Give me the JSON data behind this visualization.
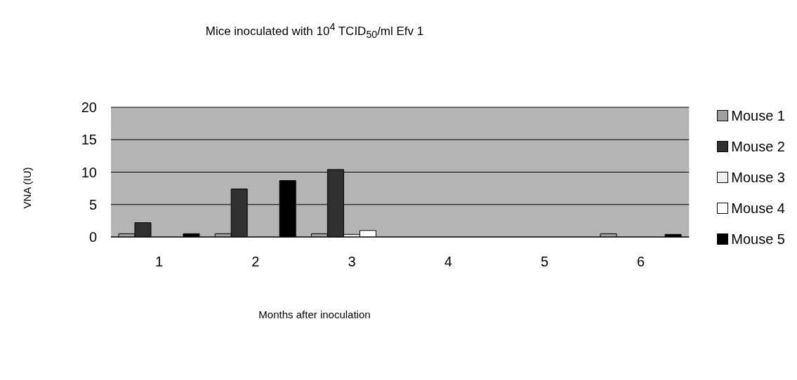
{
  "chart_data": {
    "type": "bar",
    "title": "Mice inoculated with 10$^{4}$ TCID$_{50}$/ml Efv 1",
    "xlabel": "Months after inoculation",
    "ylabel": "VNA (IU)",
    "categories": [
      "1",
      "2",
      "3",
      "4",
      "5",
      "6"
    ],
    "series": [
      {
        "name": "Mouse 1",
        "color": "#a0a0a0",
        "values": [
          0.5,
          0.5,
          0.5,
          0,
          0,
          0.5
        ]
      },
      {
        "name": "Mouse 2",
        "color": "#303030",
        "values": [
          2.2,
          7.4,
          10.4,
          0,
          0,
          0
        ]
      },
      {
        "name": "Mouse 3",
        "color": "#f0f0f0",
        "values": [
          0,
          0,
          0.4,
          0,
          0,
          0
        ]
      },
      {
        "name": "Mouse 4",
        "color": "#ffffff",
        "values": [
          0,
          0,
          1,
          0,
          0,
          0
        ]
      },
      {
        "name": "Mouse 5",
        "color": "#000000",
        "values": [
          0.5,
          8.7,
          0,
          0,
          0,
          0.4
        ]
      }
    ],
    "ylim": [
      0,
      20
    ],
    "yticks": [
      0,
      5,
      10,
      15,
      20
    ],
    "grid": "y",
    "legend": "right"
  }
}
